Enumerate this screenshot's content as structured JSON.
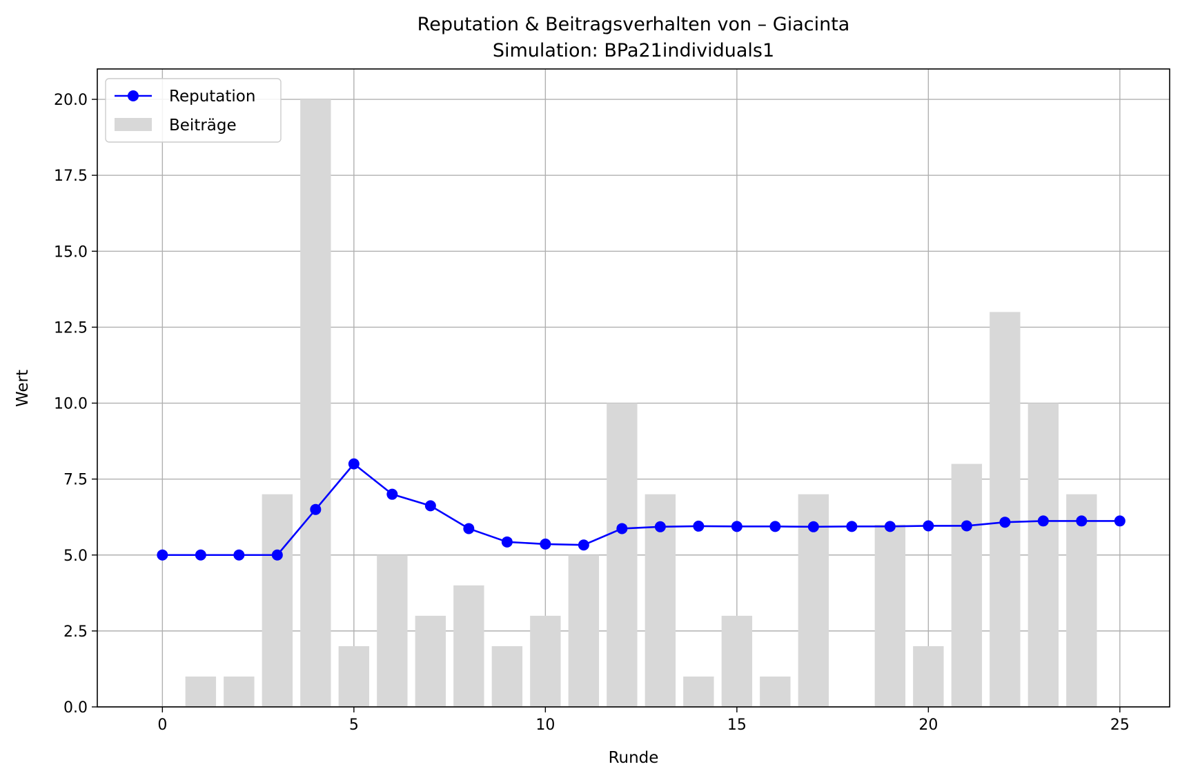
{
  "chart_data": {
    "type": "bar",
    "title": "Reputation & Beitragsverhalten von – Giacinta",
    "subtitle": "Simulation: BPa21individuals1",
    "xlabel": "Runde",
    "ylabel": "Wert",
    "xlim": [
      -1.7,
      26.3
    ],
    "ylim": [
      0,
      21
    ],
    "xticks": [
      0,
      5,
      10,
      15,
      20,
      25
    ],
    "xtick_labels": [
      "0",
      "5",
      "10",
      "15",
      "20",
      "25"
    ],
    "yticks": [
      0,
      2.5,
      5,
      7.5,
      10,
      12.5,
      15,
      17.5,
      20
    ],
    "ytick_labels": [
      "0.0",
      "2.5",
      "5.0",
      "7.5",
      "10.0",
      "12.5",
      "15.0",
      "17.5",
      "20.0"
    ],
    "grid": true,
    "legend_position": "upper-left",
    "series": [
      {
        "name": "Reputation",
        "type": "line",
        "color": "#0000ff",
        "marker": "circle",
        "x": [
          0,
          1,
          2,
          3,
          4,
          5,
          6,
          7,
          8,
          9,
          10,
          11,
          12,
          13,
          14,
          15,
          16,
          17,
          18,
          19,
          20,
          21,
          22,
          23,
          24,
          25
        ],
        "values": [
          5.0,
          5.0,
          5.0,
          5.0,
          6.5,
          8.0,
          7.0,
          6.62,
          5.87,
          5.43,
          5.36,
          5.33,
          5.87,
          5.93,
          5.95,
          5.94,
          5.94,
          5.93,
          5.94,
          5.94,
          5.96,
          5.96,
          6.08,
          6.12,
          6.12,
          6.12
        ]
      },
      {
        "name": "Beiträge",
        "type": "bar",
        "color": "#d8d8d8",
        "x": [
          1,
          2,
          3,
          4,
          5,
          6,
          7,
          8,
          9,
          10,
          11,
          12,
          13,
          14,
          15,
          16,
          17,
          19,
          20,
          21,
          22,
          23,
          24
        ],
        "values": [
          1,
          1,
          7,
          20,
          2,
          5,
          3,
          4,
          2,
          3,
          5,
          10,
          7,
          1,
          3,
          1,
          7,
          6,
          2,
          8,
          13,
          10,
          7
        ]
      }
    ]
  }
}
